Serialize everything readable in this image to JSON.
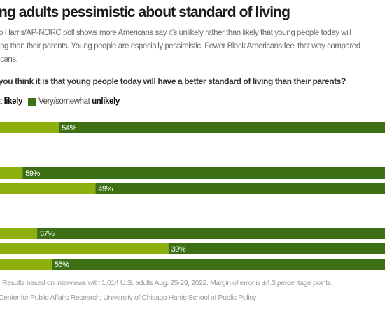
{
  "header": {
    "title": "ng adults pessimistic about standard of living",
    "subtitle_lines": [
      "o Harris/AP-NORC poll shows more Americans say it’s unlikely rather than likely that young people today will",
      "ing than their parents. Young people are especially pessimistic. Fewer Black Americans feel that way compared",
      "icans."
    ],
    "question": "you think it is that young people today will have a better standard of living than their parents?"
  },
  "legend": {
    "likely_prefix": "at",
    "likely_bold": "likely",
    "unlikely_prefix": "Very/somewhat",
    "unlikely_bold": "unlikely"
  },
  "colors": {
    "likely": "#8db00f",
    "unlikely": "#3d7014",
    "label_text": "#ffffff"
  },
  "chart_data": {
    "type": "bar",
    "orientation": "horizontal",
    "stacked": true,
    "series": [
      {
        "name": "Very/somewhat likely"
      },
      {
        "name": "Very/somewhat unlikely",
        "values": [
          54,
          59,
          49,
          57,
          39,
          55
        ]
      }
    ],
    "bars": [
      {
        "unlikely": 54,
        "label": "54%",
        "group": 0
      },
      {
        "unlikely": 59,
        "label": "59%",
        "group": 1
      },
      {
        "unlikely": 49,
        "label": "49%",
        "group": 1
      },
      {
        "unlikely": 57,
        "label": "57%",
        "group": 2
      },
      {
        "unlikely": 39,
        "label": "39%",
        "group": 2
      },
      {
        "unlikely": 55,
        "label": "55%",
        "group": 2
      }
    ],
    "xlim": [
      0,
      100
    ]
  },
  "footer": {
    "note": ". Results based on interviews with 1,014 U.S. adults Aug. 25-29, 2022. Margin of error is ±4.3 percentage points.",
    "source": "Center for Public Affairs Research; University of Chicago Harris School of Public Policy"
  }
}
